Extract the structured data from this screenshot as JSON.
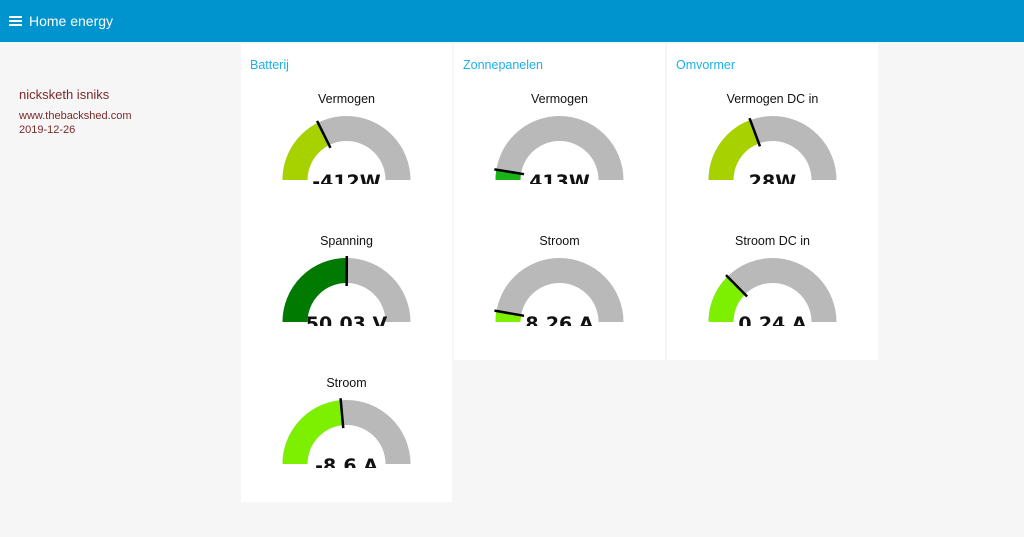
{
  "app": {
    "title": "Home energy"
  },
  "sidebar": {
    "name": "nicksketh isniks",
    "site": "www.thebackshed.com",
    "date": "2019-12-26"
  },
  "colors": {
    "header": "#0094ce",
    "group_title": "#1cb0e8",
    "track": "#b9b9b9",
    "needle": "#000000",
    "sidebar_text": "#7a2a2a"
  },
  "groups": [
    {
      "title": "Batterij",
      "gauges": [
        {
          "label": "Vermogen",
          "value": -412,
          "display": "-412W",
          "min": -5000,
          "max": 8000,
          "min_label": "-5000",
          "max_label": "8000",
          "color": "#a8d100"
        },
        {
          "label": "Spanning",
          "value": 50.03,
          "display": "50.03 V",
          "min": 40,
          "max": 60,
          "min_label": "40",
          "max_label": "60",
          "color": "#007a00"
        },
        {
          "label": "Stroom",
          "value": -8.6,
          "display": "-8.6 A",
          "min": -150,
          "max": 150,
          "min_label": "-150",
          "max_label": "150",
          "color": "#7cf000"
        }
      ]
    },
    {
      "title": "Zonnepanelen",
      "gauges": [
        {
          "label": "Vermogen",
          "value": 413,
          "display": "413W",
          "min": 0,
          "max": 8000,
          "min_label": "0",
          "max_label": "8000",
          "color": "#19b219"
        },
        {
          "label": "Stroom",
          "value": 8.26,
          "display": "8.26 A",
          "min": 0,
          "max": 150,
          "min_label": "0",
          "max_label": "150",
          "color": "#7cf000"
        }
      ]
    },
    {
      "title": "Omvormer",
      "gauges": [
        {
          "label": "Vermogen DC in",
          "value": 28,
          "display": "28W",
          "min": -5000,
          "max": 8000,
          "min_label": "-5000",
          "max_label": "8000",
          "color": "#a8d100"
        },
        {
          "label": "Stroom DC in",
          "value": 0.24,
          "display": "0.24 A",
          "min": -50,
          "max": 150,
          "min_label": "-50",
          "max_label": "150",
          "color": "#7cf000"
        }
      ]
    }
  ]
}
